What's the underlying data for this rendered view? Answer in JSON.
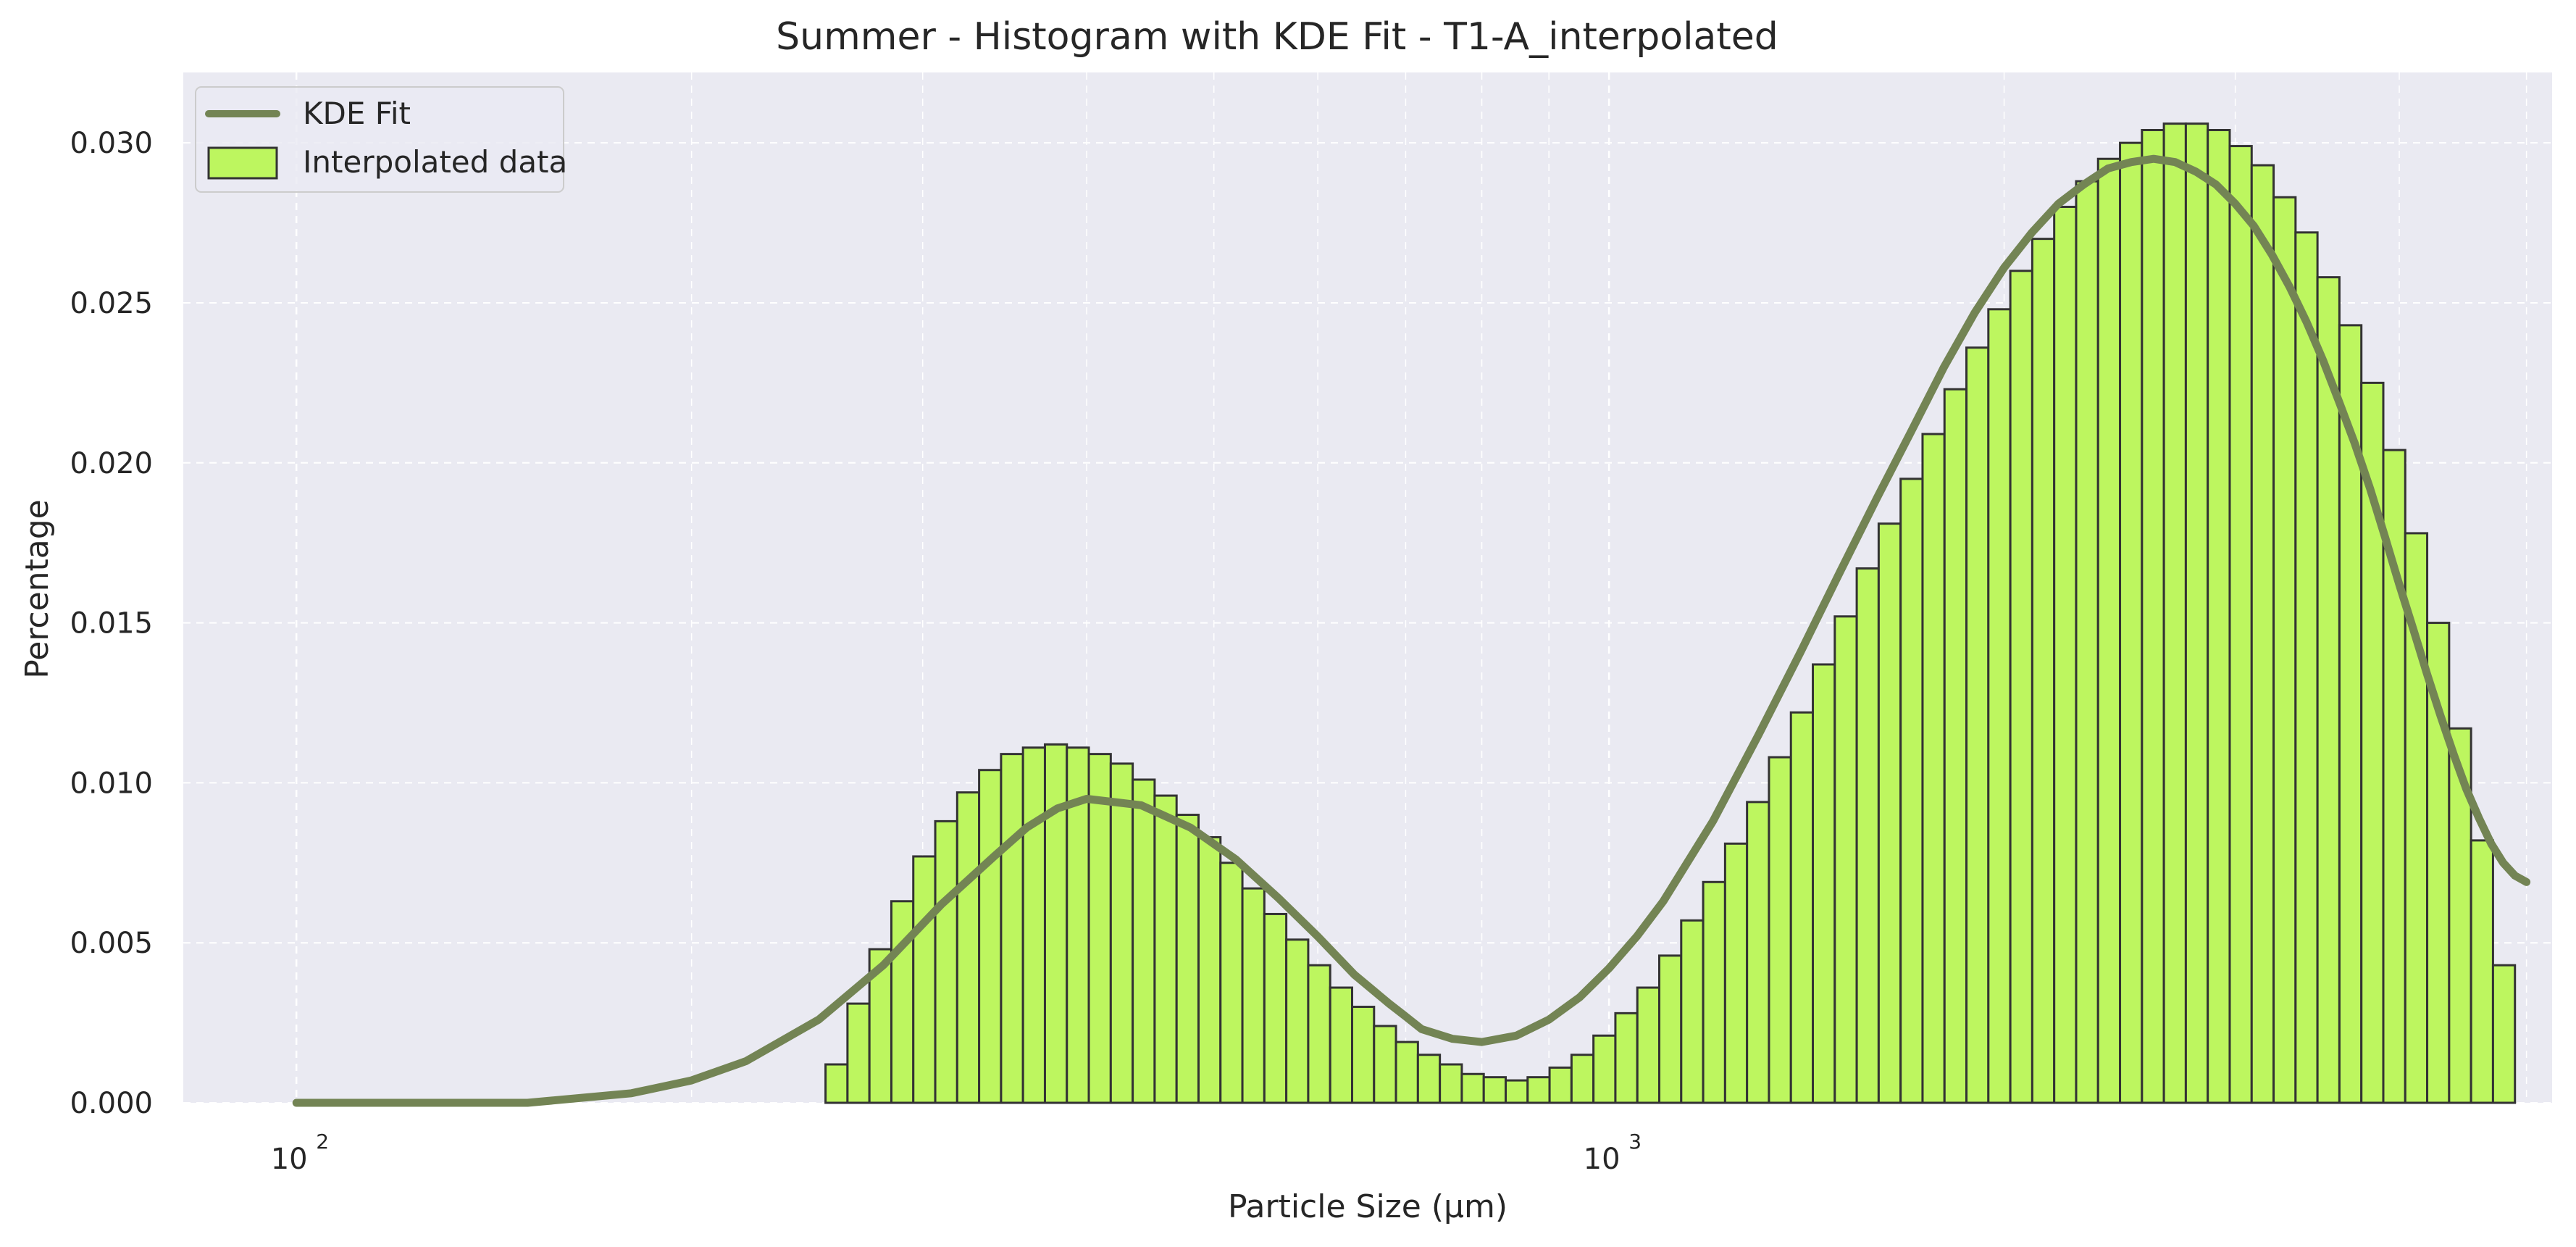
{
  "chart_data": {
    "type": "bar",
    "title": "Summer - Histogram with KDE Fit - T1-A_interpolated",
    "xlabel": "Particle Size (μm)",
    "ylabel": "Percentage",
    "xscale": "log",
    "xlim": [
      82,
      5230
    ],
    "ylim": [
      0,
      0.0322
    ],
    "grid": true,
    "legend_position": "top-left",
    "colors": {
      "background": "#eaeaf2",
      "grid": "#ffffff",
      "bar_fill": "#bdf65f",
      "bar_edge": "#333333",
      "kde_line": "#738454",
      "text": "#262626"
    },
    "x_ticks": [
      {
        "value": 100,
        "base": "10",
        "exp": "2"
      },
      {
        "value": 1000,
        "base": "10",
        "exp": "3"
      }
    ],
    "y_ticks": [
      {
        "value": 0,
        "label": "0.000"
      },
      {
        "value": 0.005,
        "label": "0.005"
      },
      {
        "value": 0.01,
        "label": "0.010"
      },
      {
        "value": 0.015,
        "label": "0.015"
      },
      {
        "value": 0.02,
        "label": "0.020"
      },
      {
        "value": 0.025,
        "label": "0.025"
      },
      {
        "value": 0.03,
        "label": "0.030"
      }
    ],
    "legend": [
      {
        "key": "kde",
        "label": "KDE Fit",
        "kind": "line"
      },
      {
        "key": "hist",
        "label": "Interpolated data",
        "kind": "patch"
      }
    ],
    "histogram": {
      "name": "Interpolated data",
      "x_start": 253,
      "x_end": 4900,
      "values": [
        0.0012,
        0.0031,
        0.0048,
        0.0063,
        0.0077,
        0.0088,
        0.0097,
        0.0104,
        0.0109,
        0.0111,
        0.0112,
        0.0111,
        0.0109,
        0.0106,
        0.0101,
        0.0096,
        0.009,
        0.0083,
        0.0075,
        0.0067,
        0.0059,
        0.0051,
        0.0043,
        0.0036,
        0.003,
        0.0024,
        0.0019,
        0.0015,
        0.0012,
        0.0009,
        0.0008,
        0.0007,
        0.0008,
        0.0011,
        0.0015,
        0.0021,
        0.0028,
        0.0036,
        0.0046,
        0.0057,
        0.0069,
        0.0081,
        0.0094,
        0.0108,
        0.0122,
        0.0137,
        0.0152,
        0.0167,
        0.0181,
        0.0195,
        0.0209,
        0.0223,
        0.0236,
        0.0248,
        0.026,
        0.027,
        0.028,
        0.0288,
        0.0295,
        0.03,
        0.0304,
        0.0306,
        0.0306,
        0.0304,
        0.0299,
        0.0293,
        0.0283,
        0.0272,
        0.0258,
        0.0243,
        0.0225,
        0.0204,
        0.0178,
        0.015,
        0.0117,
        0.0082,
        0.0043
      ]
    },
    "kde": {
      "name": "KDE Fit",
      "x": [
        100,
        150,
        180,
        200,
        220,
        250,
        280,
        310,
        340,
        360,
        380,
        400,
        440,
        480,
        520,
        560,
        600,
        640,
        680,
        700,
        720,
        760,
        800,
        850,
        900,
        950,
        1000,
        1050,
        1100,
        1200,
        1300,
        1400,
        1500,
        1600,
        1700,
        1800,
        1900,
        2000,
        2100,
        2200,
        2300,
        2400,
        2500,
        2600,
        2700,
        2800,
        2900,
        3000,
        3100,
        3200,
        3300,
        3400,
        3500,
        3600,
        3700,
        3800,
        3900,
        4000,
        4100,
        4200,
        4300,
        4400,
        4500,
        4600,
        4700,
        4800,
        4900,
        5000
      ],
      "y": [
        0.0,
        0.0,
        0.0003,
        0.0007,
        0.0013,
        0.0026,
        0.0043,
        0.0062,
        0.0077,
        0.0086,
        0.0092,
        0.0095,
        0.0093,
        0.0086,
        0.0076,
        0.0064,
        0.0052,
        0.004,
        0.0031,
        0.0027,
        0.0023,
        0.002,
        0.0019,
        0.0021,
        0.0026,
        0.0033,
        0.0042,
        0.0052,
        0.0063,
        0.0088,
        0.0115,
        0.0141,
        0.0166,
        0.0189,
        0.021,
        0.023,
        0.0247,
        0.0261,
        0.0272,
        0.0281,
        0.0287,
        0.0292,
        0.0294,
        0.0295,
        0.0294,
        0.0291,
        0.0287,
        0.0281,
        0.0274,
        0.0265,
        0.0255,
        0.0244,
        0.0232,
        0.0219,
        0.0206,
        0.0192,
        0.0177,
        0.0162,
        0.0148,
        0.0134,
        0.0121,
        0.0109,
        0.0098,
        0.0089,
        0.0081,
        0.0075,
        0.0071,
        0.0069
      ]
    }
  }
}
